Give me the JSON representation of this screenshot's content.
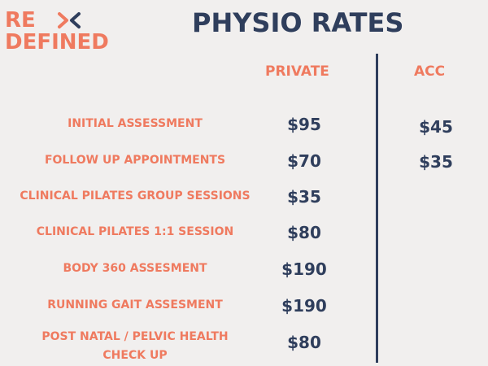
{
  "logo": {
    "line1": "RE",
    "line2": "DEFINED",
    "mark_icon": "x-cross-icon"
  },
  "title": "PHYSIO RATES",
  "columns": {
    "private": "PRIVATE",
    "acc": "ACC"
  },
  "rows": [
    {
      "label": "INITIAL ASSESSMENT",
      "private": "$95",
      "acc": "$45"
    },
    {
      "label": "FOLLOW UP APPOINTMENTS",
      "private": "$70",
      "acc": "$35"
    },
    {
      "label": "CLINICAL PILATES GROUP SESSIONS",
      "private": "$35",
      "acc": ""
    },
    {
      "label": "CLINICAL PILATES 1:1 SESSION",
      "private": "$80",
      "acc": ""
    },
    {
      "label": "BODY 360 ASSESMENT",
      "private": "$190",
      "acc": ""
    },
    {
      "label": "RUNNING GAIT ASSESMENT",
      "private": "$190",
      "acc": ""
    },
    {
      "label_line1": "POST NATAL /  PELVIC HEALTH",
      "label_line2": "CHECK UP",
      "private": "$80",
      "acc": ""
    }
  ],
  "colors": {
    "accent": "#ef7a5f",
    "navy": "#2f3e5c",
    "background": "#f1efee"
  }
}
